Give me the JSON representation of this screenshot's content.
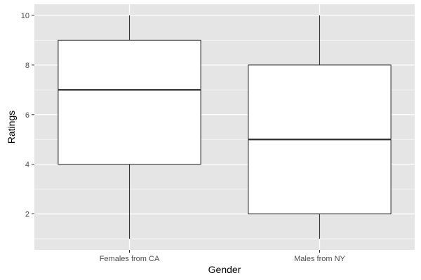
{
  "chart_data": {
    "type": "boxplot",
    "title": "",
    "xlabel": "Gender",
    "ylabel": "Ratings",
    "categories": [
      "Females from CA",
      "Males from NY"
    ],
    "boxes": [
      {
        "category": "Females from CA",
        "min": 1,
        "q1": 4,
        "median": 7,
        "q3": 9,
        "max": 10
      },
      {
        "category": "Males from NY",
        "min": 1,
        "q1": 2,
        "median": 5,
        "q3": 8,
        "max": 10
      }
    ],
    "yticks": [
      2,
      4,
      6,
      8,
      10
    ],
    "ylim": [
      0.55,
      10.45
    ],
    "grid": true,
    "legend": "none",
    "colors": {
      "panel": "#e5e5e5",
      "grid": "#ffffff",
      "box_fill": "#ffffff",
      "box_stroke": "#333333",
      "tick_text": "#4d4d4d",
      "axis_title": "#000000"
    }
  }
}
